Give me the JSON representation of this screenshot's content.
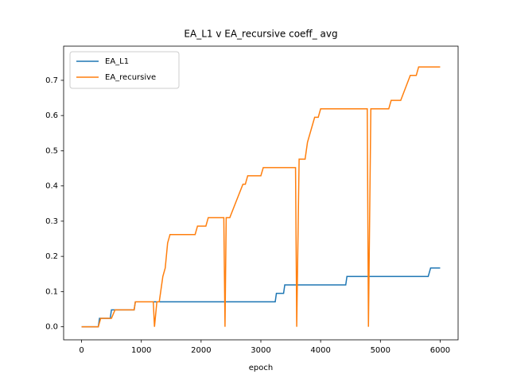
{
  "chart_data": {
    "type": "line",
    "title": "EA_L1 v EA_recursive coeff_ avg",
    "xlabel": "epoch",
    "xlim": [
      -300,
      6300
    ],
    "ylim": [
      -0.037,
      0.797
    ],
    "xticks": [
      0,
      1000,
      2000,
      3000,
      4000,
      5000,
      6000
    ],
    "yticks": [
      {
        "value": 0,
        "label": "0.0"
      },
      0.1,
      0.2,
      0.3,
      0.4,
      0.5,
      0.6,
      0.7
    ],
    "grid": false,
    "legend": "upper-left",
    "series": [
      {
        "name": "EA_L1",
        "color": "#1f77b4",
        "x": [
          0,
          280,
          300,
          480,
          500,
          880,
          900,
          3240,
          3260,
          3380,
          3400,
          4420,
          4440,
          5800,
          5840,
          6000
        ],
        "values": [
          0,
          0,
          0.024,
          0.024,
          0.048,
          0.048,
          0.071,
          0.071,
          0.095,
          0.095,
          0.119,
          0.119,
          0.143,
          0.143,
          0.167,
          0.167
        ]
      },
      {
        "name": "EA_recursive",
        "color": "#ff7f0e",
        "x": [
          0,
          280,
          320,
          500,
          560,
          880,
          900,
          1200,
          1220,
          1260,
          1300,
          1360,
          1400,
          1440,
          1480,
          1900,
          1940,
          2080,
          2120,
          2380,
          2400,
          2420,
          2480,
          2700,
          2740,
          2780,
          3000,
          3040,
          3580,
          3600,
          3640,
          3740,
          3780,
          3900,
          3960,
          4000,
          4780,
          4800,
          4840,
          5140,
          5180,
          5340,
          5500,
          5600,
          5640,
          6000
        ],
        "values": [
          0,
          0,
          0.024,
          0.024,
          0.048,
          0.048,
          0.071,
          0.071,
          0,
          0.071,
          0.071,
          0.143,
          0.167,
          0.238,
          0.262,
          0.262,
          0.286,
          0.286,
          0.31,
          0.31,
          0,
          0.31,
          0.31,
          0.405,
          0.405,
          0.429,
          0.429,
          0.452,
          0.452,
          0,
          0.476,
          0.476,
          0.524,
          0.595,
          0.595,
          0.619,
          0.619,
          0,
          0.619,
          0.619,
          0.643,
          0.643,
          0.714,
          0.714,
          0.738,
          0.738
        ]
      }
    ]
  }
}
